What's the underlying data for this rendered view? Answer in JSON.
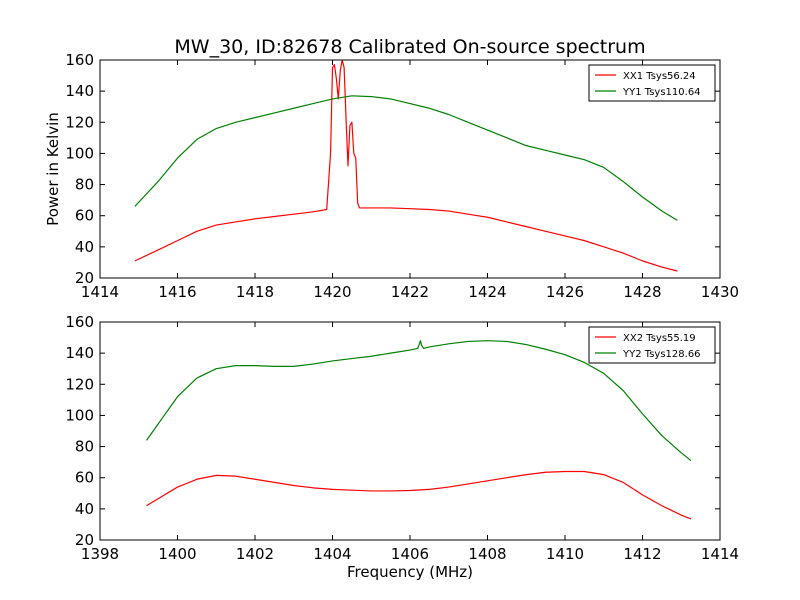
{
  "chart_data": [
    {
      "type": "line",
      "title": "MW_30, ID:82678 Calibrated On-source spectrum",
      "xlabel": "",
      "ylabel": "Power in Kelvin",
      "xlim": [
        1414,
        1430
      ],
      "ylim": [
        20,
        160
      ],
      "xticks": [
        "1414",
        "1416",
        "1418",
        "1420",
        "1422",
        "1424",
        "1426",
        "1428",
        "1430"
      ],
      "yticks": [
        "20",
        "40",
        "60",
        "80",
        "100",
        "120",
        "140",
        "160"
      ],
      "grid": false,
      "legend_position": "top-right",
      "series": [
        {
          "name": "XX1 Tsys56.24",
          "color": "#ff0000",
          "x": [
            1414.9,
            1415.5,
            1416.0,
            1416.5,
            1417.0,
            1417.5,
            1418.0,
            1418.5,
            1419.0,
            1419.5,
            1419.85,
            1419.95,
            1420.0,
            1420.05,
            1420.1,
            1420.15,
            1420.2,
            1420.25,
            1420.3,
            1420.35,
            1420.4,
            1420.45,
            1420.5,
            1420.55,
            1420.6,
            1420.65,
            1420.7,
            1421.0,
            1421.5,
            1422.0,
            1422.5,
            1423.0,
            1423.5,
            1424.0,
            1424.5,
            1425.0,
            1425.5,
            1426.0,
            1426.5,
            1427.0,
            1427.5,
            1428.0,
            1428.5,
            1428.9
          ],
          "y": [
            31,
            38,
            44,
            50,
            54,
            56,
            58,
            59.5,
            61,
            62.5,
            64,
            100,
            155,
            157,
            148,
            135,
            153,
            160,
            155,
            122,
            92,
            118,
            120,
            100,
            97,
            68,
            65,
            65,
            65,
            64.5,
            64,
            63,
            61,
            59,
            56,
            53,
            50,
            47,
            44,
            40,
            36,
            31,
            27,
            24.5
          ]
        },
        {
          "name": "YY1 Tsys110.64",
          "color": "#008000",
          "x": [
            1414.9,
            1415.5,
            1416.0,
            1416.5,
            1417.0,
            1417.5,
            1418.0,
            1418.5,
            1419.0,
            1419.5,
            1420.0,
            1420.5,
            1421.0,
            1421.5,
            1422.0,
            1422.5,
            1423.0,
            1423.5,
            1424.0,
            1424.5,
            1425.0,
            1425.5,
            1426.0,
            1426.5,
            1427.0,
            1427.5,
            1428.0,
            1428.5,
            1428.9
          ],
          "y": [
            66,
            82,
            97,
            109,
            116,
            120,
            123,
            126,
            129,
            132,
            135,
            137,
            136.5,
            135,
            132,
            129,
            125,
            120,
            115,
            110,
            105,
            102,
            99,
            96,
            91,
            82,
            72,
            63,
            57
          ]
        }
      ]
    },
    {
      "type": "line",
      "title": "",
      "xlabel": "Frequency (MHz)",
      "ylabel": "",
      "xlim": [
        1398,
        1414
      ],
      "ylim": [
        20,
        160
      ],
      "xticks": [
        "1398",
        "1400",
        "1402",
        "1404",
        "1406",
        "1408",
        "1410",
        "1412",
        "1414"
      ],
      "yticks": [
        "20",
        "40",
        "60",
        "80",
        "100",
        "120",
        "140",
        "160"
      ],
      "grid": false,
      "legend_position": "top-right",
      "series": [
        {
          "name": "XX2 Tsys55.19",
          "color": "#ff0000",
          "x": [
            1399.2,
            1399.6,
            1400.0,
            1400.5,
            1401.0,
            1401.5,
            1402.0,
            1402.5,
            1403.0,
            1403.5,
            1404.0,
            1404.5,
            1405.0,
            1405.5,
            1406.0,
            1406.5,
            1407.0,
            1407.5,
            1408.0,
            1408.5,
            1409.0,
            1409.5,
            1410.0,
            1410.5,
            1411.0,
            1411.5,
            1412.0,
            1412.5,
            1413.0,
            1413.25
          ],
          "y": [
            42,
            48,
            54,
            59,
            61.5,
            61,
            59,
            57,
            55,
            53.5,
            52.5,
            52,
            51.5,
            51.5,
            51.8,
            52.5,
            54,
            56,
            58,
            60,
            62,
            63.5,
            64,
            64,
            62,
            57,
            49,
            42,
            36,
            33.5
          ]
        },
        {
          "name": "YY2 Tsys128.66",
          "color": "#008000",
          "x": [
            1399.2,
            1399.6,
            1400.0,
            1400.5,
            1401.0,
            1401.5,
            1402.0,
            1402.5,
            1403.0,
            1403.5,
            1404.0,
            1404.5,
            1405.0,
            1405.5,
            1406.0,
            1406.2,
            1406.27,
            1406.3,
            1406.35,
            1406.5,
            1407.0,
            1407.5,
            1408.0,
            1408.5,
            1409.0,
            1409.5,
            1410.0,
            1410.5,
            1411.0,
            1411.5,
            1412.0,
            1412.5,
            1413.0,
            1413.25
          ],
          "y": [
            84,
            98,
            112,
            124,
            130,
            132,
            132,
            131.5,
            131.5,
            133,
            135,
            136.5,
            138,
            140,
            142,
            143,
            148,
            145,
            143,
            144,
            146,
            147.5,
            148,
            147.5,
            145.5,
            142.5,
            139,
            134,
            127,
            116,
            101,
            87,
            76,
            71
          ]
        }
      ]
    }
  ]
}
